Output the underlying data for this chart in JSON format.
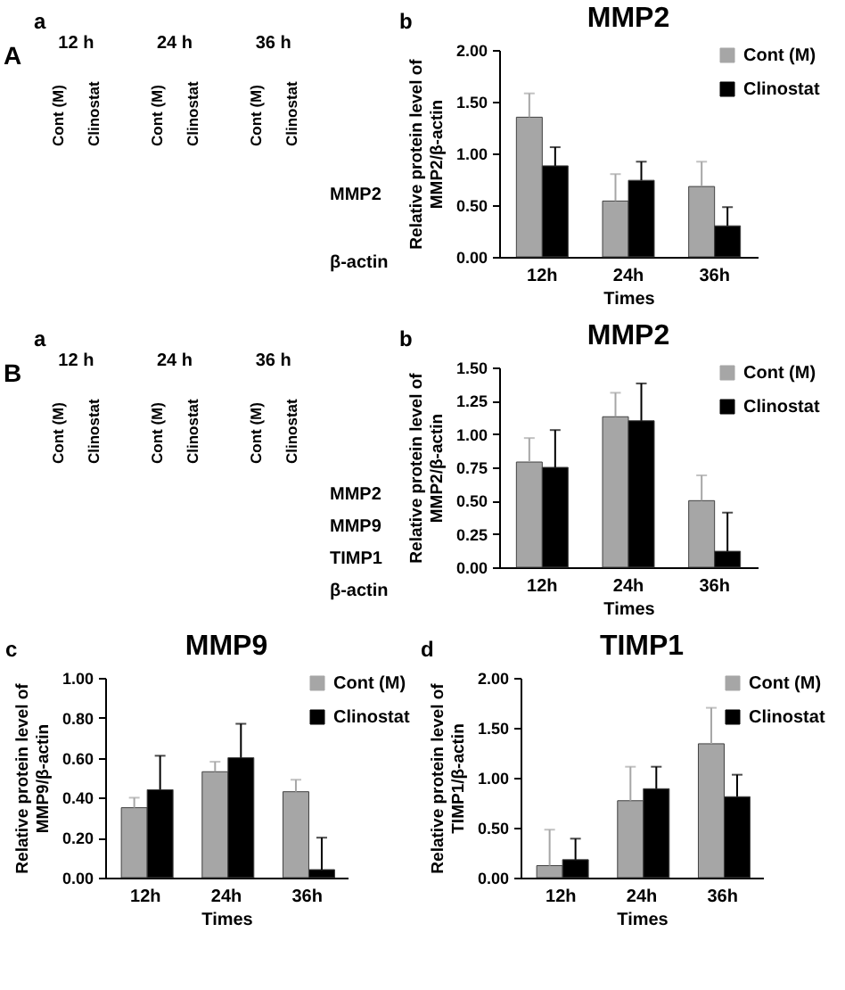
{
  "chart_data": [
    {
      "type": "other",
      "annotations": [
        "a",
        "A",
        "Cont (M)",
        "Clinostat",
        "Cont (M)",
        "Clinostat",
        "Cont (M)",
        "Clinostat"
      ],
      "categories": [
        "12 h",
        "24 h",
        "36 h"
      ],
      "y_categories": [
        "MMP2",
        "β-actin"
      ]
    },
    {
      "type": "bar",
      "title": "MMP2",
      "annotations": [
        "b"
      ],
      "categories": [
        "12h",
        "24h",
        "36h"
      ],
      "xlabel": "Times",
      "ylabel": "Relative protein level of\nMMP2/β-actin",
      "ylim": [
        0,
        2
      ],
      "yticks": [
        {
          "value": 0,
          "label": "0.00"
        },
        {
          "value": 0.5,
          "label": "0.50"
        },
        {
          "value": 1,
          "label": "1.00"
        },
        {
          "value": 1.5,
          "label": "1.50"
        },
        {
          "value": 2,
          "label": "2.00"
        }
      ],
      "series": [
        {
          "name": "Cont (M)",
          "color": "#a6a6a6",
          "values": [
            1.35,
            0.54,
            0.68
          ],
          "errors": [
            [
              1.35,
              1.58
            ],
            [
              0.54,
              0.8
            ],
            [
              0.68,
              0.92
            ]
          ]
        },
        {
          "name": "Clinostat",
          "color": "#000000",
          "values": [
            0.88,
            0.74,
            0.3
          ],
          "errors": [
            [
              0.88,
              1.06
            ],
            [
              0.74,
              0.92
            ],
            [
              0.3,
              0.48
            ]
          ]
        }
      ],
      "legend": "top right",
      "grid": false
    },
    {
      "type": "other",
      "annotations": [
        "a",
        "B",
        "Cont (M)",
        "Clinostat",
        "Cont (M)",
        "Clinostat",
        "Cont (M)",
        "Clinostat"
      ],
      "categories": [
        "12 h",
        "24 h",
        "36 h"
      ],
      "y_categories": [
        "MMP2",
        "MMP9",
        "TIMP1",
        "β-actin"
      ]
    },
    {
      "type": "bar",
      "title": "MMP2",
      "annotations": [
        "b"
      ],
      "categories": [
        "12h",
        "24h",
        "36h"
      ],
      "xlabel": "Times",
      "ylabel": "Relative protein level of\nMMP2/β-actin",
      "ylim": [
        0,
        1.5
      ],
      "yticks": [
        {
          "value": 0,
          "label": "0.00"
        },
        {
          "value": 0.25,
          "label": "0.25"
        },
        {
          "value": 0.5,
          "label": "0.50"
        },
        {
          "value": 0.75,
          "label": "0.75"
        },
        {
          "value": 1,
          "label": "1.00"
        },
        {
          "value": 1.25,
          "label": "1.25"
        },
        {
          "value": 1.5,
          "label": "1.50"
        }
      ],
      "series": [
        {
          "name": "Cont (M)",
          "color": "#a6a6a6",
          "values": [
            0.79,
            1.13,
            0.5
          ],
          "errors": [
            [
              0.79,
              0.97
            ],
            [
              1.13,
              1.31
            ],
            [
              0.5,
              0.69
            ]
          ]
        },
        {
          "name": "Clinostat",
          "color": "#000000",
          "values": [
            0.75,
            1.1,
            0.12
          ],
          "errors": [
            [
              0.75,
              1.03
            ],
            [
              1.1,
              1.38
            ],
            [
              0.12,
              0.41
            ]
          ]
        }
      ],
      "legend": "top right",
      "grid": false
    },
    {
      "type": "bar",
      "title": "MMP9",
      "annotations": [
        "c"
      ],
      "categories": [
        "12h",
        "24h",
        "36h"
      ],
      "xlabel": "Times",
      "ylabel": "Relative protein level of\nMMP9/β-actin",
      "ylim": [
        0,
        1
      ],
      "yticks": [
        {
          "value": 0,
          "label": "0.00"
        },
        {
          "value": 0.2,
          "label": "0.20"
        },
        {
          "value": 0.4,
          "label": "0.40"
        },
        {
          "value": 0.6,
          "label": "0.60"
        },
        {
          "value": 0.8,
          "label": "0.80"
        },
        {
          "value": 1,
          "label": "1.00"
        }
      ],
      "series": [
        {
          "name": "Cont (M)",
          "color": "#a6a6a6",
          "values": [
            0.35,
            0.53,
            0.43
          ],
          "errors": [
            [
              0.35,
              0.4
            ],
            [
              0.53,
              0.58
            ],
            [
              0.43,
              0.49
            ]
          ]
        },
        {
          "name": "Clinostat",
          "color": "#000000",
          "values": [
            0.44,
            0.6,
            0.04
          ],
          "errors": [
            [
              0.44,
              0.61
            ],
            [
              0.6,
              0.77
            ],
            [
              0.04,
              0.2
            ]
          ]
        }
      ],
      "legend": "top right",
      "grid": false
    },
    {
      "type": "bar",
      "title": "TIMP1",
      "annotations": [
        "d"
      ],
      "categories": [
        "12h",
        "24h",
        "36h"
      ],
      "xlabel": "Times",
      "ylabel": "Relative protein level of\nTIMP1/β-actin",
      "ylim": [
        0,
        2
      ],
      "yticks": [
        {
          "value": 0,
          "label": "0.00"
        },
        {
          "value": 0.5,
          "label": "0.50"
        },
        {
          "value": 1,
          "label": "1.00"
        },
        {
          "value": 1.5,
          "label": "1.50"
        },
        {
          "value": 2,
          "label": "2.00"
        }
      ],
      "series": [
        {
          "name": "Cont (M)",
          "color": "#a6a6a6",
          "values": [
            0.12,
            0.77,
            1.34
          ],
          "errors": [
            [
              0.12,
              0.48
            ],
            [
              0.77,
              1.11
            ],
            [
              1.34,
              1.7
            ]
          ]
        },
        {
          "name": "Clinostat",
          "color": "#000000",
          "values": [
            0.18,
            0.89,
            0.81
          ],
          "errors": [
            [
              0.18,
              0.39
            ],
            [
              0.89,
              1.11
            ],
            [
              0.81,
              1.03
            ]
          ]
        }
      ],
      "legend": "top right",
      "grid": false
    }
  ]
}
